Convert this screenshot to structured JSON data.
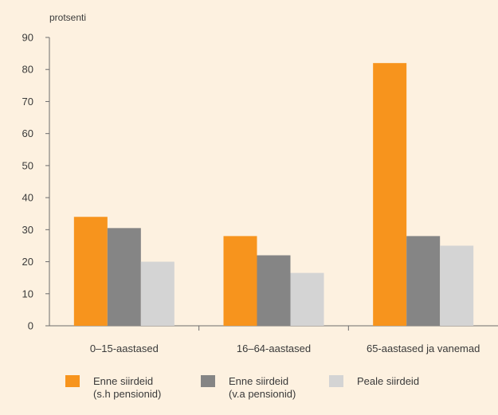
{
  "chart_data": {
    "type": "bar",
    "unit_label": "protsenti",
    "categories": [
      "0–15-aastased",
      "16–64-aastased",
      "65-aastased ja vanemad"
    ],
    "series": [
      {
        "name": "Enne siirdeid (s.h pensionid)",
        "name_lines": [
          "Enne siirdeid",
          "(s.h pensionid)"
        ],
        "color": "#f7941d",
        "values": [
          34,
          28,
          82
        ]
      },
      {
        "name": "Enne siirdeid (v.a pensionid)",
        "name_lines": [
          "Enne siirdeid",
          "(v.a pensionid)"
        ],
        "color": "#858585",
        "values": [
          30.5,
          22,
          28
        ]
      },
      {
        "name": "Peale siirdeid",
        "name_lines": [
          "Peale siirdeid"
        ],
        "color": "#d4d4d4",
        "values": [
          20,
          16.5,
          25
        ]
      }
    ],
    "ylim": [
      0,
      90
    ],
    "yticks": [
      0,
      10,
      20,
      30,
      40,
      50,
      60,
      70,
      80,
      90
    ],
    "grid": false,
    "legend_position": "bottom"
  }
}
